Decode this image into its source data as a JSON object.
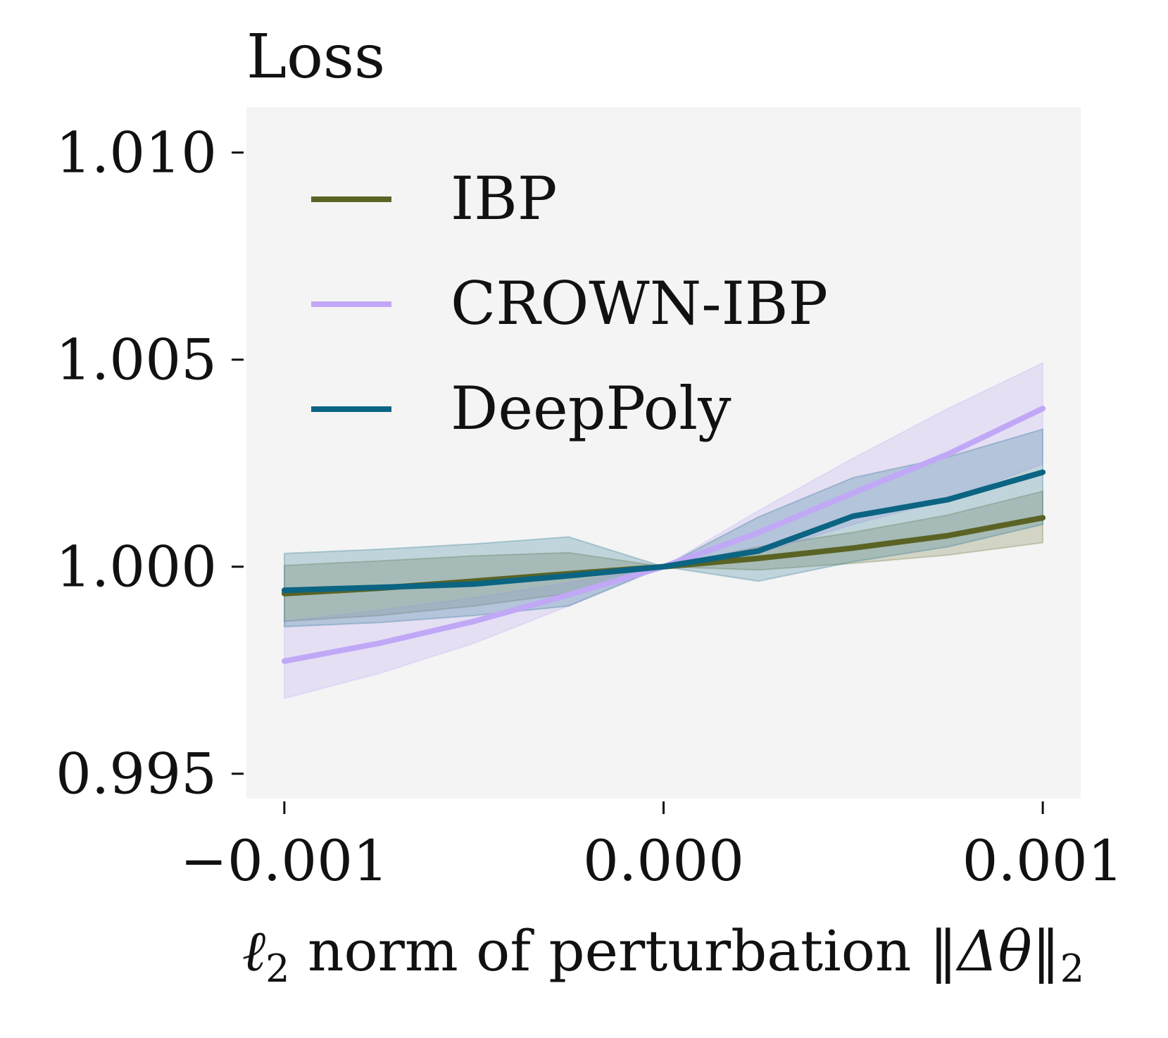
{
  "chart_data": {
    "type": "line",
    "title": "",
    "ylabel": "Loss",
    "xlabel_parts": {
      "ell": "ℓ",
      "ell_sub": "2",
      "text": " norm of perturbation ",
      "norm_open": "‖",
      "delta_theta": "Δθ",
      "norm_close": "‖",
      "norm_sub": "2"
    },
    "xlim": [
      -0.0011,
      0.0011
    ],
    "ylim": [
      0.9944,
      1.0111
    ],
    "xticks": [
      -0.001,
      0.0,
      0.001
    ],
    "xtick_labels": [
      "−0.001",
      "0.000",
      "0.001"
    ],
    "yticks": [
      0.995,
      1.0,
      1.005,
      1.01
    ],
    "ytick_labels": [
      "0.995",
      "1.000",
      "1.005",
      "1.010"
    ],
    "grid": false,
    "legend_position": "top-left",
    "series": [
      {
        "name": "IBP",
        "color": "#5b6324",
        "x": [
          -0.001,
          -0.00075,
          -0.0005,
          -0.00025,
          0.0,
          0.00025,
          0.0005,
          0.00075,
          0.001
        ],
        "y": [
          0.99935,
          0.99948,
          0.99965,
          0.99983,
          1.0,
          1.0002,
          1.00045,
          1.00075,
          1.00118
        ],
        "band_lower": [
          0.99868,
          0.99882,
          0.99905,
          0.99935,
          1.0,
          0.99992,
          1.00008,
          1.00028,
          1.00058
        ],
        "band_upper": [
          1.00003,
          1.00014,
          1.00026,
          1.00034,
          1.0,
          1.00048,
          1.00083,
          1.00125,
          1.00182
        ]
      },
      {
        "name": "CROWN-IBP",
        "color": "#c0a8f6",
        "x": [
          -0.001,
          -0.00075,
          -0.0005,
          -0.00025,
          0.0,
          0.00025,
          0.0005,
          0.00075,
          0.001
        ],
        "y": [
          0.99772,
          0.99815,
          0.99868,
          0.99932,
          1.0,
          1.00082,
          1.00178,
          1.00272,
          1.00382
        ],
        "band_lower": [
          0.99682,
          0.99742,
          0.99815,
          0.99905,
          1.0,
          1.00032,
          1.00102,
          1.00162,
          1.00248
        ],
        "band_upper": [
          0.99868,
          0.99895,
          0.99925,
          0.99962,
          1.0,
          1.00135,
          1.00262,
          1.00382,
          1.00492
        ]
      },
      {
        "name": "DeepPoly",
        "color": "#0b6482",
        "x": [
          -0.001,
          -0.00075,
          -0.0005,
          -0.00025,
          0.0,
          0.00025,
          0.0005,
          0.00075,
          0.001
        ],
        "y": [
          0.99943,
          0.9995,
          0.99958,
          0.99978,
          1.0,
          1.00038,
          1.00122,
          1.00162,
          1.00228
        ],
        "band_lower": [
          0.99855,
          0.99865,
          0.99882,
          0.99905,
          1.0,
          0.99965,
          1.00012,
          1.00048,
          1.00102
        ],
        "band_upper": [
          1.00032,
          1.00042,
          1.00055,
          1.00072,
          1.0,
          1.0012,
          1.00215,
          1.00265,
          1.00332
        ]
      }
    ]
  }
}
